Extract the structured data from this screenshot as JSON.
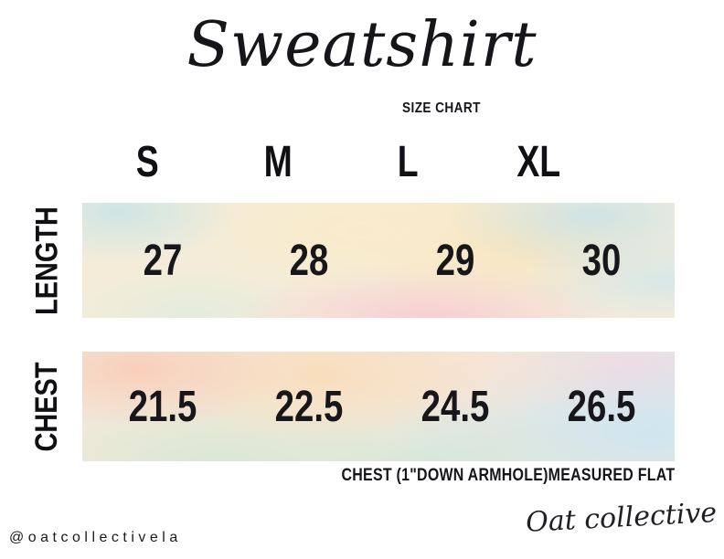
{
  "title": "Sweatshirt",
  "subtitle": "SIZE CHART",
  "chart_data": {
    "type": "table",
    "columns": [
      "S",
      "M",
      "L",
      "XL"
    ],
    "rows": [
      {
        "label": "LENGTH",
        "values": [
          "27",
          "28",
          "29",
          "30"
        ]
      },
      {
        "label": "CHEST",
        "values": [
          "21.5",
          "22.5",
          "24.5",
          "26.5"
        ]
      }
    ],
    "note": "CHEST (1\"DOWN ARMHOLE)MEASURED FLAT",
    "units": "inches"
  },
  "footer": {
    "handle": "@oatcollectivela",
    "brand_signature": "Oat collective"
  },
  "colors": {
    "background": "#ffffff",
    "text": "#15151a",
    "watercolor_length_band": [
      "#c8e4e6",
      "#faebc8",
      "#fae4ba",
      "#f8cbd3",
      "#e0ecde"
    ],
    "watercolor_chest_band": [
      "#f9cdb9",
      "#fadcb9",
      "#f6d6e0",
      "#d6e8d2",
      "#cee5f0"
    ]
  }
}
